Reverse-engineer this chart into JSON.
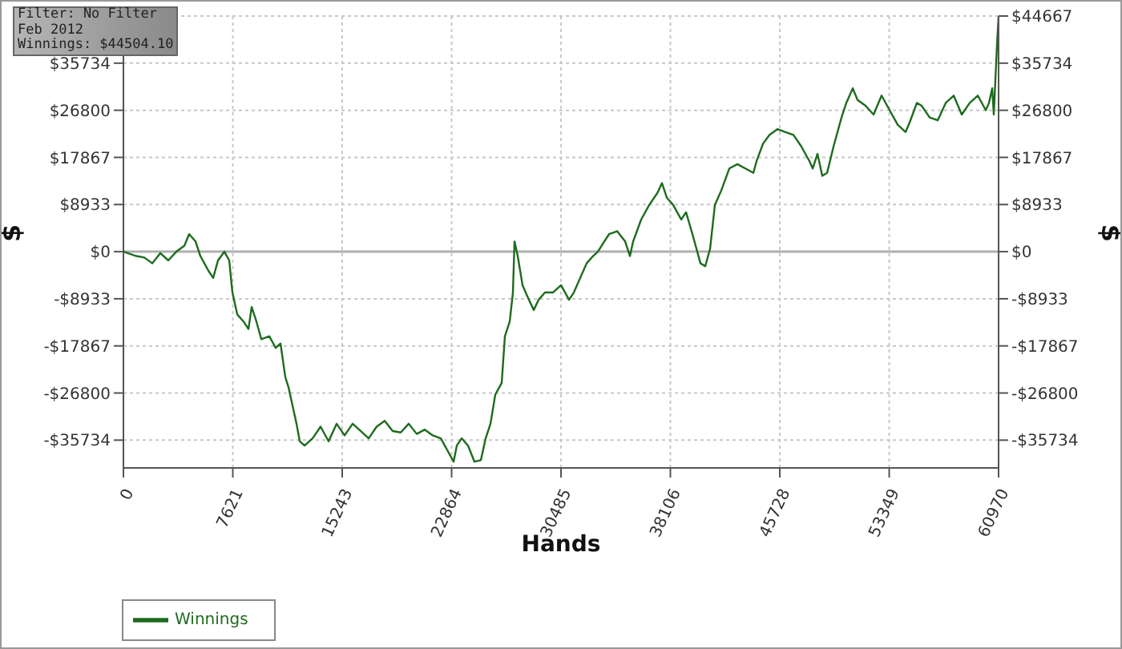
{
  "chart_data": {
    "type": "line",
    "xlabel": "Hands",
    "ylabel": "$",
    "y2label": "$",
    "annotations": [
      "Filter: No Filter",
      "Feb 2012",
      "Winnings: $44504.10"
    ],
    "xlim": [
      0,
      60970
    ],
    "xticks": [
      0,
      7621,
      15243,
      22864,
      30485,
      38106,
      45728,
      53349,
      60970
    ],
    "ylim": [
      -41000,
      44667
    ],
    "yticks": [
      {
        "value": -35734,
        "label": "-$35734"
      },
      {
        "value": -26800,
        "label": "-$26800"
      },
      {
        "value": -17867,
        "label": "-$17867"
      },
      {
        "value": -8933,
        "label": "-$8933"
      },
      {
        "value": 0,
        "label": "$0"
      },
      {
        "value": 8933,
        "label": "$8933"
      },
      {
        "value": 17867,
        "label": "$17867"
      },
      {
        "value": 26800,
        "label": "$26800"
      },
      {
        "value": 35734,
        "label": "$35734"
      }
    ],
    "y2lim": [
      -41000,
      44667
    ],
    "y2ticks": [
      {
        "value": -35734,
        "label": "-$35734"
      },
      {
        "value": -26800,
        "label": "-$26800"
      },
      {
        "value": -17867,
        "label": "-$17867"
      },
      {
        "value": -8933,
        "label": "-$8933"
      },
      {
        "value": 0,
        "label": "$0"
      },
      {
        "value": 8933,
        "label": "$8933"
      },
      {
        "value": 17867,
        "label": "$17867"
      },
      {
        "value": 26800,
        "label": "$26800"
      },
      {
        "value": 35734,
        "label": "$35734"
      },
      {
        "value": 44667,
        "label": "$44667"
      }
    ],
    "grid": true,
    "legend": "bottom left",
    "marker": "none",
    "line_style": "solid",
    "ref_lines": [
      {
        "axis": "y",
        "value": 0,
        "color": "#b0b0b0"
      }
    ],
    "series": [
      {
        "name": "Winnings",
        "color": "#1e6b1e",
        "x": [
          0,
          893,
          1452,
          2010,
          2568,
          3127,
          3685,
          4243,
          4578,
          5025,
          5360,
          5918,
          6254,
          6589,
          7035,
          7370,
          7594,
          7929,
          8375,
          8710,
          8934,
          9269,
          9604,
          10162,
          10609,
          10944,
          11279,
          11502,
          11837,
          12060,
          12283,
          12619,
          13177,
          13735,
          14294,
          14852,
          15410,
          15969,
          16527,
          17086,
          17644,
          18202,
          18761,
          19319,
          19877,
          20436,
          20994,
          21552,
          22111,
          22669,
          23004,
          23227,
          23562,
          24009,
          24456,
          24902,
          25237,
          25572,
          25907,
          26354,
          26577,
          26912,
          27136,
          27247,
          27470,
          27806,
          28252,
          28588,
          28923,
          29369,
          29928,
          30486,
          31044,
          31379,
          31826,
          32273,
          32719,
          33054,
          33501,
          33836,
          34394,
          34953,
          35288,
          35511,
          36069,
          36628,
          37186,
          37521,
          37856,
          38303,
          38861,
          39196,
          39643,
          40201,
          40536,
          40871,
          41206,
          41653,
          42211,
          42770,
          43328,
          43886,
          44110,
          44556,
          45003,
          45561,
          46119,
          46678,
          47236,
          47795,
          48018,
          48353,
          48688,
          49023,
          49470,
          50028,
          50363,
          50810,
          51145,
          51703,
          52262,
          52820,
          53378,
          53937,
          54495,
          54830,
          55277,
          55612,
          56170,
          56729,
          57287,
          57845,
          58404,
          58962,
          59520,
          60079,
          60302,
          60525,
          60637,
          60860,
          60970
        ],
        "values": [
          0,
          -830,
          -1106,
          -2212,
          -277,
          -1659,
          0,
          1106,
          3318,
          1936,
          -830,
          -3595,
          -4977,
          -1659,
          0,
          -1659,
          -7742,
          -11890,
          -13272,
          -14655,
          -10507,
          -13272,
          -16590,
          -16037,
          -18249,
          -17420,
          -23779,
          -25715,
          -29862,
          -32627,
          -35945,
          -36775,
          -35392,
          -33180,
          -35945,
          -32627,
          -34839,
          -32627,
          -34010,
          -35392,
          -33180,
          -32074,
          -34010,
          -34286,
          -32627,
          -34563,
          -33733,
          -34839,
          -35392,
          -38157,
          -39816,
          -36775,
          -35392,
          -36775,
          -39816,
          -39534,
          -35392,
          -32627,
          -27097,
          -24885,
          -16037,
          -13272,
          -7742,
          1936,
          -830,
          -6360,
          -9125,
          -11060,
          -9125,
          -7742,
          -7742,
          -6360,
          -9125,
          -7742,
          -4977,
          -2212,
          -830,
          0,
          1936,
          3318,
          3871,
          1936,
          -830,
          1936,
          6083,
          8848,
          11060,
          12996,
          10231,
          8848,
          6083,
          7466,
          3318,
          -2212,
          -2765,
          553,
          8848,
          11613,
          15761,
          16590,
          15761,
          14931,
          17143,
          20461,
          22120,
          23226,
          22673,
          22120,
          19908,
          17143,
          15761,
          18526,
          14378,
          14931,
          19908,
          25438,
          28203,
          30968,
          28756,
          27650,
          25991,
          29586,
          26821,
          24056,
          22673,
          24885,
          28203,
          27650,
          25438,
          24885,
          28203,
          29586,
          25991,
          28203,
          29586,
          26821,
          28203,
          30968,
          25991,
          39263,
          44504
        ]
      }
    ]
  }
}
